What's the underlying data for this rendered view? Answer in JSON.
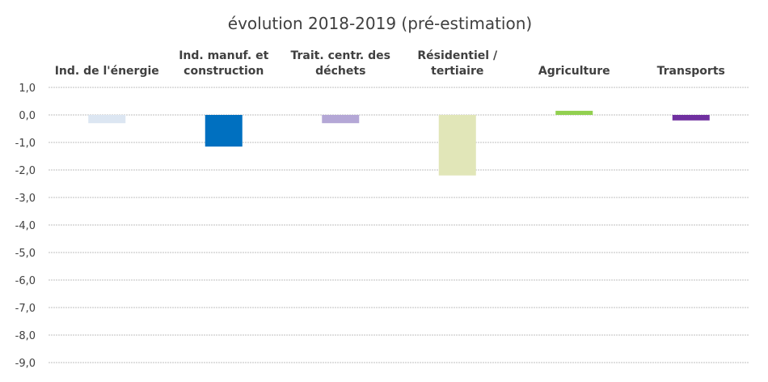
{
  "chart_data": {
    "type": "bar",
    "title": "évolution 2018-2019 (pré-estimation)",
    "categories": [
      [
        "Ind. de l'énergie"
      ],
      [
        "Ind. manuf. et",
        "construction"
      ],
      [
        "Trait. centr. des",
        "déchets"
      ],
      [
        "Résidentiel /",
        "tertiaire"
      ],
      [
        "Agriculture"
      ],
      [
        "Transports"
      ]
    ],
    "values": [
      -0.3,
      -1.15,
      -0.3,
      -2.2,
      0.15,
      -0.2
    ],
    "colors": [
      "#dce6f2",
      "#0070c0",
      "#b4a7d6",
      "#e1e6b8",
      "#92d050",
      "#7030a0"
    ],
    "ylim": [
      -9,
      1
    ],
    "yticks": [
      "1,0",
      "0,0",
      "-1,0",
      "-2,0",
      "-3,0",
      "-4,0",
      "-5,0",
      "-6,0",
      "-7,0",
      "-8,0",
      "-9,0"
    ],
    "xlabel": "",
    "ylabel": "",
    "grid": true,
    "category_labels_position": "top"
  }
}
